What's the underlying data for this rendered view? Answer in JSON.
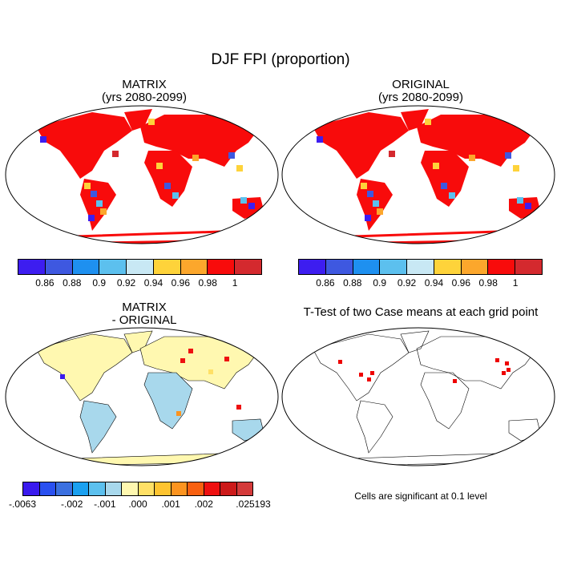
{
  "figure": {
    "title": "DJF FPI (proportion)",
    "panels": [
      {
        "id": "matrix",
        "title": "MATRIX\n(yrs 2080-2099)"
      },
      {
        "id": "original",
        "title": "ORIGINAL\n(yrs 2080-2099)"
      },
      {
        "id": "difference",
        "title": "MATRIX\n- ORIGINAL"
      },
      {
        "id": "ttest",
        "title": "T-Test of two Case means at each grid point"
      }
    ],
    "ttest_note": "Cells are significant at 0.1 level"
  },
  "colorbars": {
    "main": {
      "colors": [
        "#3d1df0",
        "#3e58e0",
        "#1e90f0",
        "#5cc0ee",
        "#c8e8f4",
        "#fed33a",
        "#fca72c",
        "#f80b0b",
        "#d4292e"
      ],
      "labels": [
        "0.86",
        "0.88",
        "0.9",
        "0.92",
        "0.94",
        "0.96",
        "0.98",
        "1"
      ]
    },
    "diff": {
      "colors": [
        "#3a1aee",
        "#2a50f0",
        "#3b70e0",
        "#1aa0f0",
        "#5cc0ee",
        "#a8d8ec",
        "#fff8b0",
        "#ffe066",
        "#fec430",
        "#fc9420",
        "#f86010",
        "#ee1010",
        "#cc1a1a",
        "#d43a3a"
      ],
      "labels": [
        "-.0063",
        "-.002",
        "-.001",
        ".000",
        ".001",
        ".002",
        ".025193"
      ]
    }
  },
  "colors": {
    "land_main": "#f80b0b",
    "land_dark": "#d4292e",
    "diff_land": "#fff8b0",
    "diff_ocean_land": "#a8d8ec",
    "significant": "#ee0000"
  }
}
